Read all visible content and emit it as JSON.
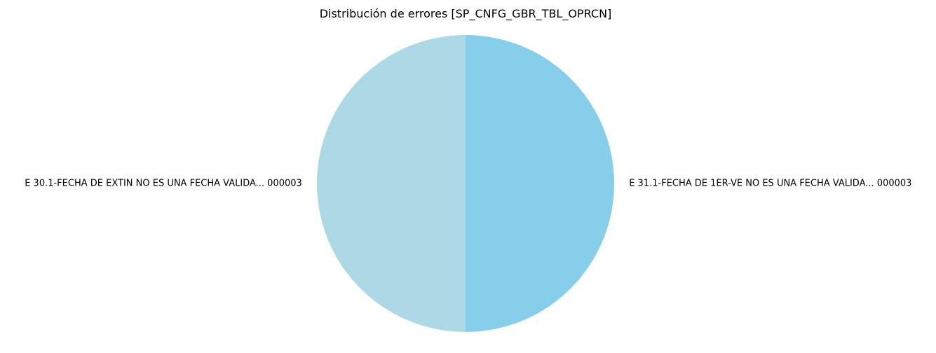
{
  "chart_data": {
    "type": "pie",
    "title": "Distribución de errores [SP_CNFG_GBR_TBL_OPRCN]",
    "start_angle": 90,
    "direction": "counterclockwise",
    "slices": [
      {
        "label": "E 30.1-FECHA DE EXTIN NO ES UNA FECHA VALIDA... 000003",
        "value": 1,
        "color": "#add8e6"
      },
      {
        "label": "E 31.1-FECHA DE 1ER-VE NO ES UNA FECHA VALIDA... 000003",
        "value": 1,
        "color": "#87ceeb"
      }
    ]
  }
}
